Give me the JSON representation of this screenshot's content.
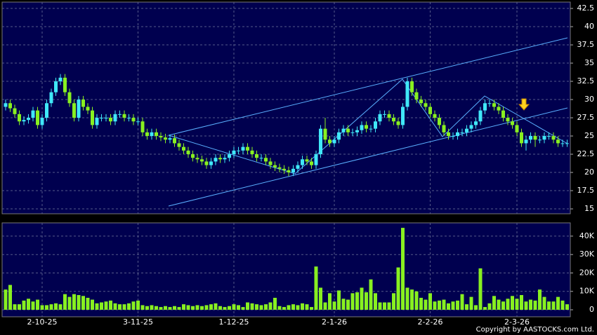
{
  "chart_data": [
    {
      "type": "candlestick",
      "categories": [
        null,
        null,
        null,
        null,
        null,
        null,
        null,
        null,
        "2-10-25",
        null,
        null,
        null,
        null,
        null,
        null,
        null,
        null,
        null,
        null,
        null,
        null,
        null,
        null,
        null,
        null,
        null,
        null,
        null,
        null,
        "3-11-25",
        null,
        null,
        null,
        null,
        null,
        null,
        null,
        null,
        null,
        null,
        null,
        null,
        null,
        null,
        null,
        null,
        null,
        null,
        null,
        null,
        "1-12-25",
        null,
        null,
        null,
        null,
        null,
        null,
        null,
        null,
        null,
        null,
        null,
        null,
        null,
        null,
        null,
        null,
        null,
        null,
        null,
        null,
        null,
        "2-1-26",
        null,
        null,
        null,
        null,
        null,
        null,
        null,
        null,
        null,
        null,
        null,
        null,
        null,
        null,
        null,
        null,
        null,
        null,
        null,
        null,
        "2-2-26",
        null,
        null,
        null,
        null,
        null,
        null,
        null,
        null,
        null,
        null,
        null,
        null,
        null,
        null,
        null,
        null,
        null,
        null,
        "2-3-26",
        null,
        null,
        null,
        null,
        null,
        null,
        null,
        null,
        null,
        null,
        null
      ],
      "open": [
        29,
        29.5,
        28.8,
        28,
        27,
        27.2,
        27.5,
        28.5,
        26.5,
        27.5,
        29.5,
        31,
        32.5,
        33,
        31,
        29.5,
        27.5,
        30,
        29,
        28.5,
        26.5,
        27.5,
        27.5,
        27.5,
        27,
        28,
        28,
        27.5,
        27.5,
        27,
        27,
        25.5,
        25,
        25.5,
        25,
        24.8,
        24.5,
        24.7,
        24,
        23.5,
        23,
        22.5,
        22,
        21.8,
        21.5,
        21,
        21.5,
        22,
        21.8,
        22,
        22.5,
        23,
        23,
        23.5,
        23,
        22.5,
        22,
        22,
        21.5,
        21,
        20.7,
        20.5,
        20.3,
        20,
        20.5,
        21,
        21.8,
        21.5,
        21,
        22.5,
        26,
        24.5,
        24,
        24.5,
        25.5,
        26,
        25.5,
        25.5,
        25.8,
        26.5,
        26,
        26,
        27,
        28,
        28,
        27.5,
        27,
        26.5,
        29,
        32.5,
        31,
        30,
        29.5,
        29,
        28,
        27.5,
        26.5,
        25.5,
        25,
        25,
        25.5,
        25.5,
        26,
        26.5,
        27,
        28.5,
        29.5,
        29.5,
        29,
        28.5,
        27.5,
        27,
        26.5,
        25.5,
        24,
        24.5,
        25,
        24.5,
        24.5,
        25,
        25,
        24.5,
        24,
        24
      ],
      "high": [
        30,
        30,
        29.3,
        28.5,
        27.7,
        28,
        29,
        29,
        28,
        30,
        31.5,
        33,
        33.5,
        33.5,
        31.5,
        30,
        30.5,
        30.5,
        29.5,
        29,
        28,
        28,
        28,
        28,
        28.5,
        28.5,
        28.5,
        28,
        28,
        27.5,
        27.5,
        26,
        26,
        26,
        25.5,
        25.3,
        25.2,
        25.2,
        24.5,
        24,
        23.5,
        23,
        22.5,
        22.3,
        22,
        22,
        22.5,
        22.5,
        22.5,
        23,
        23.5,
        23.5,
        24,
        24,
        23.5,
        23,
        22.5,
        22.5,
        22,
        21.5,
        21.2,
        21,
        20.8,
        21,
        21.5,
        22.3,
        22.3,
        22,
        23,
        26.5,
        27.5,
        25,
        25,
        26,
        26.5,
        26.5,
        26,
        26.3,
        27,
        27,
        26.5,
        27.5,
        28.5,
        28.5,
        28.5,
        28,
        27.5,
        29.5,
        33,
        33,
        31.5,
        30.5,
        30,
        29.5,
        28.5,
        28,
        27,
        26,
        25.5,
        26,
        26,
        26.5,
        27,
        27.5,
        29,
        30,
        30,
        30,
        29.5,
        29,
        28,
        27.5,
        27,
        26,
        25,
        25.5,
        25.5,
        25,
        25.5,
        25.5,
        25.5,
        25,
        24.5,
        24.5
      ],
      "low": [
        28.5,
        28.3,
        27.5,
        26.5,
        26.5,
        26.7,
        27,
        26,
        26,
        27,
        29,
        30.5,
        32,
        30.5,
        29,
        27,
        27,
        28.5,
        28,
        26,
        26,
        27,
        27,
        26.5,
        26.5,
        27.5,
        27,
        27,
        26.5,
        26.5,
        25,
        24.5,
        24.5,
        24.5,
        24.3,
        24,
        24,
        23.5,
        23,
        22.5,
        22,
        21.5,
        21.3,
        21,
        20.5,
        20.5,
        21,
        21.3,
        21.3,
        21.5,
        22,
        22.5,
        22.5,
        22.5,
        22,
        21.5,
        21.5,
        21,
        20.5,
        20.2,
        20,
        19.8,
        19.5,
        19.5,
        20,
        20.5,
        21,
        20.5,
        20.5,
        22,
        24,
        23.5,
        23.5,
        24,
        25,
        25,
        25,
        25,
        25.3,
        25.5,
        25.5,
        25.5,
        26.5,
        27.5,
        27,
        26.5,
        26,
        26,
        28.5,
        30.5,
        29.5,
        29,
        28.5,
        27.5,
        27,
        26,
        25,
        24.5,
        24.5,
        24.5,
        25,
        25,
        25.5,
        26,
        26.5,
        28,
        29,
        28.5,
        28,
        27,
        26.5,
        26,
        25,
        23.5,
        23,
        24,
        23.5,
        24,
        24,
        24.5,
        24,
        23.5,
        23.5,
        23.5
      ],
      "close": [
        29.5,
        28.8,
        28,
        27,
        27.2,
        27.5,
        28.5,
        26.5,
        27.5,
        29.5,
        31,
        32.5,
        33,
        31,
        29.5,
        27.5,
        30,
        29,
        28.5,
        26.5,
        27.5,
        27.5,
        27.5,
        27,
        28,
        28,
        27.5,
        27.5,
        27,
        27,
        25.5,
        25,
        25.5,
        25,
        24.8,
        24.5,
        24.7,
        24,
        23.5,
        23,
        22.5,
        22,
        21.8,
        21.5,
        21,
        21.5,
        22,
        21.8,
        22,
        22.5,
        23,
        23,
        23.5,
        23,
        22.5,
        22,
        22,
        21.5,
        21,
        20.7,
        20.5,
        20.3,
        20,
        20.5,
        21,
        21.8,
        21.5,
        21,
        22.5,
        26,
        24.5,
        24,
        24.5,
        25.5,
        26,
        25.5,
        25.5,
        25.8,
        26.5,
        26,
        26,
        27,
        28,
        28,
        27.5,
        27,
        26.5,
        29,
        32.5,
        31,
        30,
        29.5,
        29,
        28,
        27.5,
        26.5,
        25.5,
        25,
        25,
        25.5,
        25.5,
        26,
        26.5,
        27,
        28.5,
        29.5,
        29.5,
        29,
        28.5,
        27.5,
        27,
        26.5,
        25.5,
        24,
        24.5,
        25,
        24.5,
        24.5,
        25,
        25,
        24.5,
        24,
        24,
        24
      ],
      "up_color": "#40e8f8",
      "down_color": "#88f020",
      "ylim": [
        14.33,
        43.37
      ],
      "yticks": [
        15,
        17.5,
        20,
        22.5,
        25,
        27.5,
        30,
        32.5,
        35,
        37.5,
        40,
        42.5
      ],
      "grid": true
    },
    {
      "type": "bar",
      "values": [
        11000,
        13500,
        3000,
        3000,
        5000,
        6000,
        4500,
        5500,
        2500,
        2500,
        3000,
        3500,
        3000,
        8500,
        7000,
        8500,
        8000,
        7500,
        6500,
        5500,
        3500,
        4000,
        4500,
        5000,
        3500,
        3000,
        3000,
        3500,
        4500,
        5000,
        2500,
        2000,
        2500,
        2000,
        1500,
        2000,
        1500,
        2000,
        1500,
        3000,
        2500,
        2000,
        2500,
        2000,
        2500,
        3000,
        3500,
        2000,
        1500,
        2000,
        3000,
        2500,
        1500,
        4000,
        3500,
        3000,
        2500,
        3000,
        4000,
        6500,
        2000,
        1500,
        2500,
        3000,
        2500,
        3500,
        3000,
        1500,
        23500,
        12000,
        4000,
        9000,
        4500,
        10500,
        6000,
        5500,
        9000,
        9500,
        12000,
        9500,
        16500,
        9000,
        4000,
        4000,
        4000,
        9000,
        23000,
        44500,
        12000,
        11000,
        10000,
        6500,
        5500,
        9000,
        4500,
        5000,
        5500,
        3500,
        4500,
        5000,
        8500,
        3000,
        7000,
        2500,
        22500,
        1500,
        3500,
        7500,
        5500,
        4500,
        6000,
        7500,
        6000,
        8000,
        4500,
        5500,
        5000,
        11000,
        7000,
        4500,
        4500,
        7000,
        5000,
        3000
      ],
      "color": "#88f020",
      "ylim": [
        -3800,
        47200
      ],
      "yticks": [
        0,
        {
          "value": 10000,
          "label": "10K"
        },
        {
          "value": 20000,
          "label": "20K"
        },
        {
          "value": 30000,
          "label": "30K"
        },
        {
          "value": 40000,
          "label": "40K"
        }
      ],
      "grid": true
    },
    {
      "copyright": "Copyright by AASTOCKS.com Ltd."
    }
  ]
}
